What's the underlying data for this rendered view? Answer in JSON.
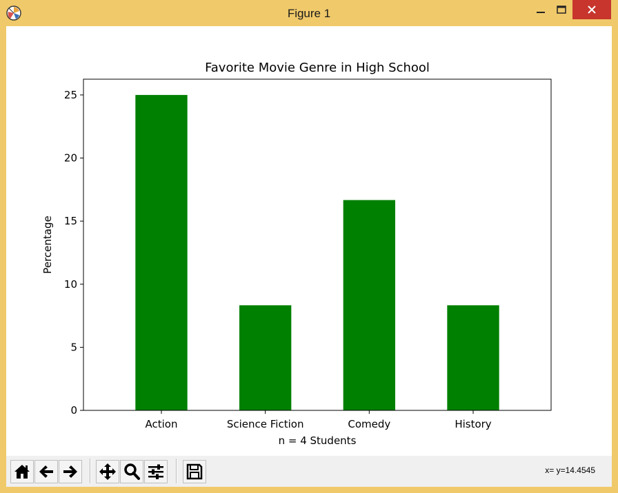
{
  "window": {
    "title": "Figure 1"
  },
  "toolbar": {
    "buttons": [
      {
        "name": "home-button",
        "icon": "home-icon"
      },
      {
        "name": "back-button",
        "icon": "arrow-left-icon"
      },
      {
        "name": "forward-button",
        "icon": "arrow-right-icon"
      },
      {
        "name": "pan-button",
        "icon": "move-icon"
      },
      {
        "name": "zoom-button",
        "icon": "magnifier-icon"
      },
      {
        "name": "configure-subplots-button",
        "icon": "sliders-icon"
      },
      {
        "name": "save-button",
        "icon": "floppy-disk-icon"
      }
    ],
    "coords_text": "x= y=14.4545"
  },
  "chart_data": {
    "type": "bar",
    "title": "Favorite Movie Genre in High School",
    "xlabel": "n = 4 Students",
    "ylabel": "Percentage",
    "categories": [
      "Action",
      "Science Fiction",
      "Comedy",
      "History"
    ],
    "values": [
      25.0,
      8.33,
      16.67,
      8.33
    ],
    "ylim": [
      0,
      26.25
    ],
    "yticks": [
      "0",
      "5",
      "10",
      "15",
      "20",
      "25"
    ],
    "ytick_values": [
      0,
      5,
      10,
      15,
      20,
      25
    ],
    "bar_color": "#008000",
    "grid": false
  }
}
